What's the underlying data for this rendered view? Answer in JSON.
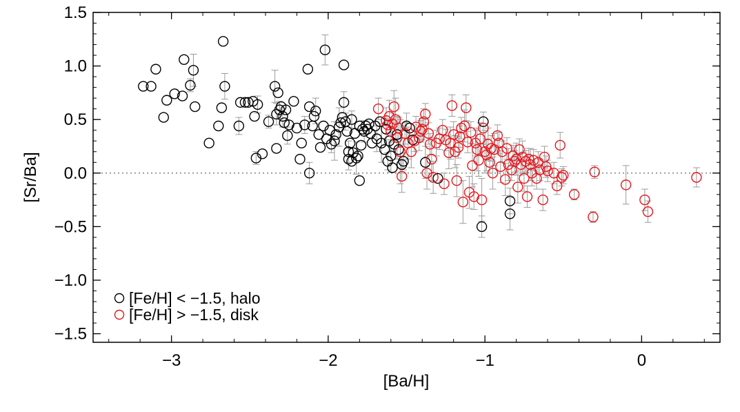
{
  "chart_data": {
    "type": "scatter",
    "title": "",
    "xlabel": "[Ba/H]",
    "ylabel": "[Sr/Ba]",
    "xlim": [
      -3.5,
      0.5
    ],
    "ylim": [
      -1.58,
      1.5
    ],
    "xticks": [
      -3,
      -2,
      -1,
      0
    ],
    "xtick_labels": [
      "−3",
      "−2",
      "−1",
      "0"
    ],
    "yticks": [
      -1.5,
      -1.0,
      -0.5,
      0.0,
      0.5,
      1.0,
      1.5
    ],
    "ytick_labels": [
      "−1.5",
      "−1.0",
      "−0.5",
      "0.0",
      "0.5",
      "1.0",
      "1.5"
    ],
    "reference_line_y": 0.0,
    "grid": false,
    "legend_position": "bottom-left",
    "colors": {
      "halo": "#000000",
      "disk": "#e8141a",
      "errorbar": "#9a9a9a",
      "refline": "#808080"
    },
    "series": [
      {
        "name": "[Fe/H] < −1.5, halo",
        "color": "#000000",
        "marker": "open-circle",
        "points": [
          [
            -3.18,
            0.81,
            0
          ],
          [
            -3.13,
            0.81,
            0
          ],
          [
            -3.1,
            0.97,
            0
          ],
          [
            -3.05,
            0.52,
            0
          ],
          [
            -3.03,
            0.68,
            0
          ],
          [
            -2.98,
            0.74,
            0
          ],
          [
            -2.93,
            0.72,
            0
          ],
          [
            -2.92,
            1.06,
            0
          ],
          [
            -2.88,
            0.82,
            0.06
          ],
          [
            -2.86,
            0.96,
            0.15
          ],
          [
            -2.85,
            0.62,
            0
          ],
          [
            -2.76,
            0.28,
            0
          ],
          [
            -2.7,
            0.44,
            0
          ],
          [
            -2.68,
            0.61,
            0
          ],
          [
            -2.67,
            1.23,
            0
          ],
          [
            -2.66,
            0.81,
            0.12
          ],
          [
            -2.57,
            0.44,
            0.08
          ],
          [
            -2.56,
            0.66,
            0
          ],
          [
            -2.53,
            0.66,
            0
          ],
          [
            -2.51,
            0.66,
            0
          ],
          [
            -2.48,
            0.67,
            0
          ],
          [
            -2.47,
            0.53,
            0
          ],
          [
            -2.46,
            0.14,
            0.06
          ],
          [
            -2.45,
            0.64,
            0.08
          ],
          [
            -2.42,
            0.18,
            0
          ],
          [
            -2.38,
            0.48,
            0.06
          ],
          [
            -2.34,
            0.81,
            0.15
          ],
          [
            -2.33,
            0.55,
            0.1
          ],
          [
            -2.33,
            0.23,
            0
          ],
          [
            -2.32,
            0.75,
            0
          ],
          [
            -2.31,
            0.59,
            0.08
          ],
          [
            -2.3,
            0.62,
            0
          ],
          [
            -2.29,
            0.53,
            0.1
          ],
          [
            -2.28,
            0.47,
            0
          ],
          [
            -2.27,
            0.59,
            0
          ],
          [
            -2.26,
            0.35,
            0.08
          ],
          [
            -2.25,
            0.45,
            0
          ],
          [
            -2.22,
            0.67,
            0
          ],
          [
            -2.2,
            0.42,
            0
          ],
          [
            -2.18,
            0.13,
            0
          ],
          [
            -2.17,
            0.28,
            0
          ],
          [
            -2.15,
            0.45,
            0.08
          ],
          [
            -2.13,
            0.97,
            0
          ],
          [
            -2.12,
            0.62,
            0
          ],
          [
            -2.12,
            0.0,
            0.1
          ],
          [
            -2.1,
            0.44,
            0
          ],
          [
            -2.09,
            0.53,
            0
          ],
          [
            -2.08,
            0.58,
            0.12
          ],
          [
            -2.06,
            0.36,
            0
          ],
          [
            -2.05,
            0.24,
            0
          ],
          [
            -2.03,
            0.44,
            0
          ],
          [
            -2.02,
            1.15,
            0.14
          ],
          [
            -2.01,
            0.32,
            0
          ],
          [
            -1.99,
            0.4,
            0
          ],
          [
            -1.98,
            0.27,
            0.08
          ],
          [
            -1.96,
            0.3,
            0.18
          ],
          [
            -1.95,
            0.36,
            0
          ],
          [
            -1.93,
            0.43,
            0.18
          ],
          [
            -1.92,
            0.47,
            0
          ],
          [
            -1.91,
            0.52,
            0
          ],
          [
            -1.9,
            1.01,
            0
          ],
          [
            -1.9,
            0.66,
            0.1
          ],
          [
            -1.89,
            0.48,
            0.08
          ],
          [
            -1.88,
            0.39,
            0
          ],
          [
            -1.87,
            0.2,
            0.1
          ],
          [
            -1.87,
            0.13,
            0.1
          ],
          [
            -1.86,
            0.28,
            0
          ],
          [
            -1.85,
            0.11,
            0
          ],
          [
            -1.85,
            0.5,
            0.08
          ],
          [
            -1.84,
            0.19,
            0
          ],
          [
            -1.83,
            0.37,
            0
          ],
          [
            -1.82,
            0.14,
            0.15
          ],
          [
            -1.81,
            0.16,
            0
          ],
          [
            -1.8,
            -0.07,
            0
          ],
          [
            -1.8,
            0.44,
            0
          ],
          [
            -1.79,
            0.26,
            0
          ],
          [
            -1.78,
            0.41,
            0
          ],
          [
            -1.77,
            0.39,
            0.1
          ],
          [
            -1.76,
            0.44,
            0
          ],
          [
            -1.75,
            0.41,
            0
          ],
          [
            -1.74,
            0.46,
            0
          ],
          [
            -1.73,
            0.37,
            0
          ],
          [
            -1.72,
            0.28,
            0
          ],
          [
            -1.7,
            0.44,
            0
          ],
          [
            -1.69,
            0.32,
            0.12
          ],
          [
            -1.67,
            0.48,
            0
          ],
          [
            -1.66,
            0.28,
            0.18
          ],
          [
            -1.64,
            0.22,
            0
          ],
          [
            -1.63,
            0.41,
            0.1
          ],
          [
            -1.62,
            0.11,
            0.08
          ],
          [
            -1.61,
            0.3,
            0
          ],
          [
            -1.6,
            0.16,
            0.15
          ],
          [
            -1.59,
            0.05,
            0
          ],
          [
            -1.58,
            0.27,
            0
          ],
          [
            -1.56,
            0.36,
            0
          ],
          [
            -1.55,
            0.22,
            0
          ],
          [
            -1.53,
            0.08,
            0.08
          ],
          [
            -1.52,
            0.11,
            0.08
          ],
          [
            -1.5,
            0.44,
            0.12
          ],
          [
            -1.48,
            0.42,
            0
          ],
          [
            -1.46,
            0.31,
            0
          ],
          [
            -1.38,
            0.1,
            0.15
          ],
          [
            -1.3,
            -0.05,
            0
          ],
          [
            -1.01,
            0.48,
            0
          ],
          [
            -1.02,
            -0.5,
            0.1
          ],
          [
            -0.84,
            -0.26,
            0.12
          ],
          [
            -0.84,
            -0.38,
            0.15
          ]
        ]
      },
      {
        "name": "[Fe/H] > −1.5, disk",
        "color": "#e8141a",
        "marker": "open-circle",
        "points": [
          [
            -1.68,
            0.6,
            0.1
          ],
          [
            -1.63,
            0.49,
            0.12
          ],
          [
            -1.62,
            0.45,
            0
          ],
          [
            -1.61,
            0.53,
            0.15
          ],
          [
            -1.6,
            0.39,
            0.1
          ],
          [
            -1.59,
            0.46,
            0.1
          ],
          [
            -1.58,
            0.62,
            0.15
          ],
          [
            -1.57,
            0.5,
            0.2
          ],
          [
            -1.56,
            0.33,
            0.2
          ],
          [
            -1.55,
            0.42,
            0.1
          ],
          [
            -1.54,
            0.2,
            0.3
          ],
          [
            -1.53,
            -0.03,
            0.15
          ],
          [
            -1.51,
            0.37,
            0.1
          ],
          [
            -1.49,
            0.28,
            0.15
          ],
          [
            -1.47,
            0.2,
            0.15
          ],
          [
            -1.45,
            0.3,
            0.1
          ],
          [
            -1.44,
            0.43,
            0.1
          ],
          [
            -1.42,
            0.33,
            0.12
          ],
          [
            -1.41,
            0.39,
            0.1
          ],
          [
            -1.4,
            0.41,
            0.1
          ],
          [
            -1.39,
            0.48,
            0.12
          ],
          [
            -1.38,
            0.55,
            0.1
          ],
          [
            -1.37,
            0.0,
            0.15
          ],
          [
            -1.36,
            0.37,
            0.1
          ],
          [
            -1.35,
            0.27,
            0.1
          ],
          [
            -1.34,
            0.13,
            0.2
          ],
          [
            -1.33,
            -0.04,
            0.15
          ],
          [
            -1.31,
            0.28,
            0.12
          ],
          [
            -1.29,
            0.32,
            0.1
          ],
          [
            -1.27,
            0.4,
            0.1
          ],
          [
            -1.26,
            -0.1,
            0.1
          ],
          [
            -1.25,
            0.31,
            0.1
          ],
          [
            -1.23,
            0.19,
            0.15
          ],
          [
            -1.22,
            0.28,
            0.15
          ],
          [
            -1.21,
            0.63,
            0.1
          ],
          [
            -1.2,
            0.36,
            0.12
          ],
          [
            -1.19,
            0.2,
            0.15
          ],
          [
            -1.18,
            -0.07,
            0.15
          ],
          [
            -1.17,
            0.24,
            0.1
          ],
          [
            -1.16,
            0.34,
            0.1
          ],
          [
            -1.15,
            0.42,
            0.1
          ],
          [
            -1.14,
            -0.27,
            0.2
          ],
          [
            -1.13,
            0.44,
            0.15
          ],
          [
            -1.12,
            0.61,
            0.12
          ],
          [
            -1.11,
            0.29,
            0.1
          ],
          [
            -1.1,
            -0.18,
            0.15
          ],
          [
            -1.09,
            0.38,
            0.1
          ],
          [
            -1.08,
            0.07,
            0.2
          ],
          [
            -1.07,
            -0.22,
            0.12
          ],
          [
            -1.06,
            0.28,
            0.12
          ],
          [
            -1.05,
            0.22,
            0.2
          ],
          [
            -1.04,
            0.12,
            0.15
          ],
          [
            -1.03,
            0.32,
            0.15
          ],
          [
            -1.02,
            -0.25,
            0.2
          ],
          [
            -1.01,
            0.42,
            0.15
          ],
          [
            -1.0,
            0.2,
            0.2
          ],
          [
            -0.99,
            0.17,
            0.15
          ],
          [
            -0.98,
            0.27,
            0.15
          ],
          [
            -0.97,
            0.1,
            0.1
          ],
          [
            -0.96,
            0.23,
            0.12
          ],
          [
            -0.95,
            0.0,
            0.15
          ],
          [
            -0.94,
            0.22,
            0.15
          ],
          [
            -0.92,
            0.35,
            0.1
          ],
          [
            -0.91,
            0.28,
            0.1
          ],
          [
            -0.9,
            0.06,
            0.15
          ],
          [
            -0.89,
            0.2,
            0.1
          ],
          [
            -0.87,
            -0.06,
            0.15
          ],
          [
            -0.86,
            0.23,
            0.1
          ],
          [
            -0.85,
            0.08,
            0.15
          ],
          [
            -0.83,
            0.03,
            0.1
          ],
          [
            -0.82,
            0.16,
            0.1
          ],
          [
            -0.81,
            0.11,
            0.1
          ],
          [
            -0.8,
            0.13,
            0.15
          ],
          [
            -0.79,
            -0.13,
            0.15
          ],
          [
            -0.78,
            0.22,
            0.1
          ],
          [
            -0.77,
            0.08,
            0.1
          ],
          [
            -0.76,
            0.15,
            0.15
          ],
          [
            -0.75,
            -0.05,
            0.12
          ],
          [
            -0.74,
            0.11,
            0.1
          ],
          [
            -0.73,
            -0.22,
            0.1
          ],
          [
            -0.72,
            0.13,
            0.1
          ],
          [
            -0.71,
            0.08,
            0.15
          ],
          [
            -0.7,
            0.0,
            0.12
          ],
          [
            -0.69,
            0.12,
            0.1
          ],
          [
            -0.67,
            -0.05,
            0.1
          ],
          [
            -0.66,
            0.1,
            0.1
          ],
          [
            -0.65,
            0.03,
            0.1
          ],
          [
            -0.63,
            -0.25,
            0.1
          ],
          [
            -0.62,
            0.15,
            0.1
          ],
          [
            -0.61,
            0.06,
            0.1
          ],
          [
            -0.6,
            0.02,
            0.1
          ],
          [
            -0.56,
            0.0,
            0.1
          ],
          [
            -0.54,
            -0.12,
            0.08
          ],
          [
            -0.52,
            0.26,
            0.12
          ],
          [
            -0.51,
            -0.04,
            0.08
          ],
          [
            -0.5,
            -0.02,
            0.08
          ],
          [
            -0.43,
            -0.2,
            0.05
          ],
          [
            -0.31,
            -0.41,
            0.05
          ],
          [
            -0.3,
            0.01,
            0.06
          ],
          [
            -0.1,
            -0.11,
            0.18
          ],
          [
            0.02,
            -0.25,
            0.1
          ],
          [
            0.04,
            -0.36,
            0.1
          ],
          [
            0.35,
            -0.04,
            0.09
          ]
        ]
      }
    ]
  }
}
